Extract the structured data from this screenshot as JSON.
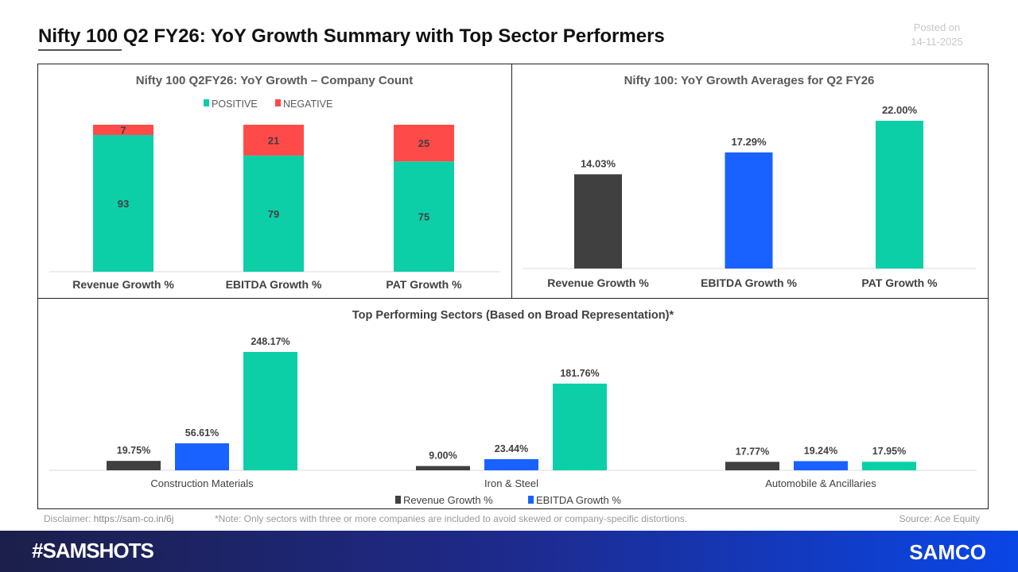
{
  "header": {
    "title": "Nifty 100 Q2 FY26: YoY Growth Summary with Top Sector Performers",
    "posted_label": "Posted on",
    "posted_date": "14-11-2025"
  },
  "colors": {
    "positive": "#0ccfa8",
    "negative": "#ff4a4a",
    "revenue": "#404040",
    "ebitda": "#1a62ff",
    "pat": "#0ccfa8"
  },
  "chart_data": [
    {
      "type": "bar",
      "stacked": true,
      "title": "Nifty 100 Q2FY26: YoY Growth – Company Count",
      "categories": [
        "Revenue Growth %",
        "EBITDA Growth %",
        "PAT Growth %"
      ],
      "series": [
        {
          "name": "POSITIVE",
          "values": [
            93,
            79,
            75
          ]
        },
        {
          "name": "NEGATIVE",
          "values": [
            7,
            21,
            25
          ]
        }
      ],
      "ylim": [
        0,
        100
      ],
      "legend": "top",
      "grid": false
    },
    {
      "type": "bar",
      "title": "Nifty 100: YoY Growth Averages for Q2 FY26",
      "categories": [
        "Revenue Growth %",
        "EBITDA Growth %",
        "PAT Growth %"
      ],
      "values": [
        14.03,
        17.29,
        22.0
      ],
      "labels": [
        "14.03%",
        "17.29%",
        "22.00%"
      ],
      "ylim": [
        0,
        22
      ],
      "grid": false
    },
    {
      "type": "bar",
      "title": "Top Performing Sectors (Based on Broad Representation)*",
      "categories": [
        "Construction Materials",
        "Iron & Steel",
        "Automobile & Ancillaries"
      ],
      "series": [
        {
          "name": "Revenue Growth %",
          "values": [
            19.75,
            9.0,
            17.77
          ],
          "labels": [
            "19.75%",
            "9.00%",
            "17.77%"
          ]
        },
        {
          "name": "EBITDA Growth %",
          "values": [
            56.61,
            23.44,
            19.24
          ],
          "labels": [
            "56.61%",
            "23.44%",
            "19.24%"
          ]
        },
        {
          "values": [
            248.17,
            181.76,
            17.95
          ],
          "labels": [
            "248.17%",
            "181.76%",
            "17.95%"
          ]
        }
      ],
      "ylim": [
        0,
        248.17
      ],
      "legend": "bottom",
      "grid": false
    }
  ],
  "footer": {
    "disclaimer_label": "Disclaimer: ",
    "disclaimer_link": "https://sam-co.in/6j",
    "note": "*Note: Only sectors with three or more companies are included to avoid skewed or company-specific distortions.",
    "source": "Source: Ace Equity",
    "hashtag": "#SAMSHOTS",
    "logo": "SAMCO"
  }
}
